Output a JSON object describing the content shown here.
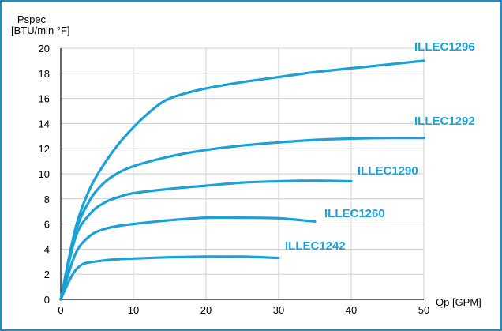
{
  "chart_data": {
    "type": "line",
    "title": "",
    "ylabel_line1": "Pspec",
    "ylabel_line2": "[BTU/min °F]",
    "xlabel": "Qp [GPM]",
    "xlim": [
      0,
      50
    ],
    "ylim": [
      0,
      20
    ],
    "x_ticks": [
      0,
      10,
      20,
      30,
      40,
      50
    ],
    "y_ticks": [
      0,
      2,
      4,
      6,
      8,
      10,
      12,
      14,
      16,
      18,
      20
    ],
    "grid": true,
    "line_color": "#1ba0d8",
    "series": [
      {
        "name": "ILLEC1296",
        "x": [
          0,
          2,
          4,
          6,
          8,
          10,
          12,
          14,
          16,
          20,
          25,
          30,
          35,
          40,
          45,
          50
        ],
        "y": [
          0,
          5.6,
          8.8,
          10.8,
          12.4,
          13.7,
          14.8,
          15.7,
          16.2,
          16.8,
          17.3,
          17.7,
          18.1,
          18.4,
          18.7,
          19.0
        ]
      },
      {
        "name": "ILLEC1292",
        "x": [
          0,
          2,
          4,
          6,
          8,
          10,
          13,
          16,
          20,
          25,
          30,
          35,
          40,
          45,
          50
        ],
        "y": [
          0,
          5.3,
          7.9,
          9.3,
          10.1,
          10.6,
          11.1,
          11.5,
          11.9,
          12.25,
          12.5,
          12.7,
          12.8,
          12.85,
          12.85
        ]
      },
      {
        "name": "ILLEC1290",
        "x": [
          0,
          2,
          4,
          6,
          8,
          10,
          15,
          20,
          25,
          30,
          35,
          40
        ],
        "y": [
          0,
          4.9,
          6.8,
          7.7,
          8.15,
          8.45,
          8.8,
          9.05,
          9.3,
          9.4,
          9.45,
          9.4
        ]
      },
      {
        "name": "ILLEC1260",
        "x": [
          0,
          2,
          4,
          6,
          8,
          10,
          15,
          20,
          25,
          30,
          35
        ],
        "y": [
          0,
          3.6,
          5.05,
          5.6,
          5.85,
          6.0,
          6.3,
          6.5,
          6.5,
          6.45,
          6.2
        ]
      },
      {
        "name": "ILLEC1242",
        "x": [
          0,
          1,
          2,
          3,
          4,
          6,
          8,
          10,
          15,
          20,
          25,
          30
        ],
        "y": [
          0,
          1.3,
          2.3,
          2.8,
          2.95,
          3.1,
          3.2,
          3.25,
          3.35,
          3.4,
          3.4,
          3.3
        ]
      }
    ]
  }
}
